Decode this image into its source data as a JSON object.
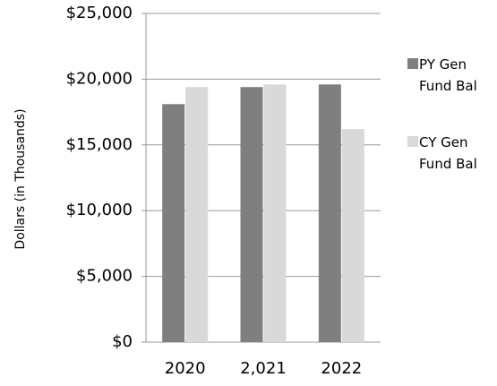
{
  "chart_data": {
    "type": "bar",
    "y_label": "Dollars (in Thousands)",
    "categories": [
      "2020",
      "2,021",
      "2022"
    ],
    "series": [
      {
        "name": "PY Gen Fund Bal",
        "color": "#7f7f7f",
        "values": [
          18100,
          19400,
          19600
        ]
      },
      {
        "name": "CY Gen Fund Bal",
        "color": "#d9d9d9",
        "values": [
          19400,
          19600,
          16200
        ]
      }
    ],
    "ylim": [
      0,
      25000
    ],
    "yticks": [
      {
        "value": 0,
        "label": "$0"
      },
      {
        "value": 5000,
        "label": "$5,000"
      },
      {
        "value": 10000,
        "label": "$10,000"
      },
      {
        "value": 15000,
        "label": "$15,000"
      },
      {
        "value": 20000,
        "label": "$20,000"
      },
      {
        "value": 25000,
        "label": "$25,000"
      }
    ],
    "grid": true,
    "legend": "right"
  }
}
